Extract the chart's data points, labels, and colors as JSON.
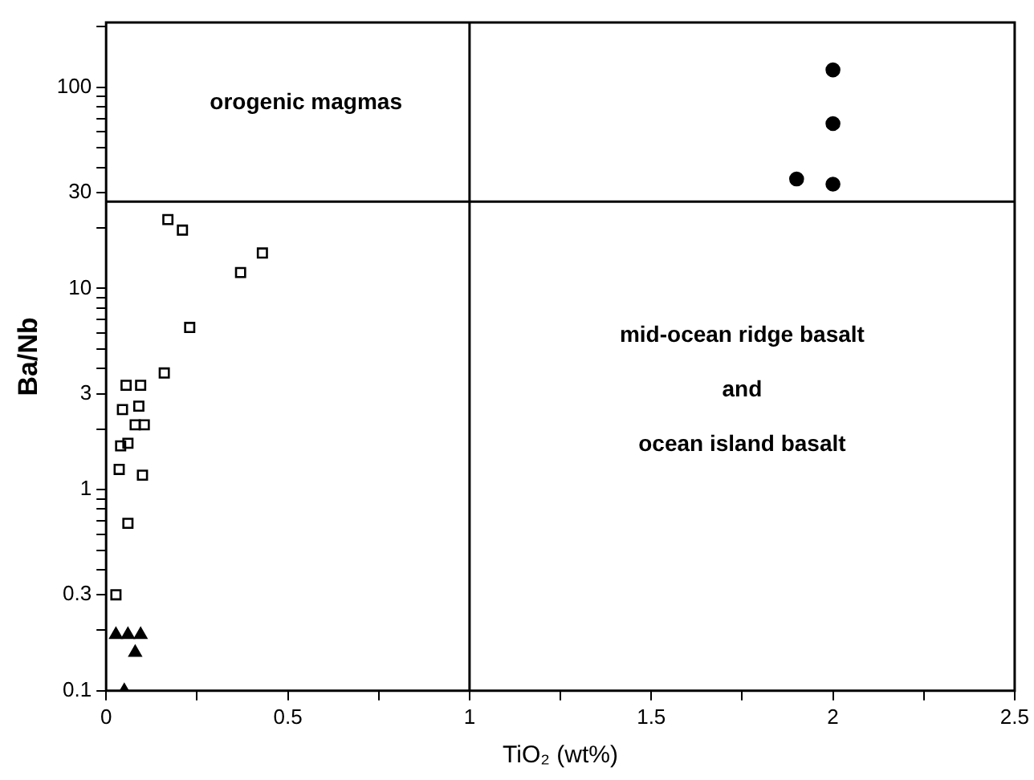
{
  "chart_data": {
    "type": "scatter",
    "xlabel": "TiO₂ (wt%)",
    "ylabel": "Ba/Nb",
    "log": "y",
    "grid": false,
    "legend": false,
    "xlim": [
      0,
      2.5
    ],
    "ylim": [
      0.1,
      210
    ],
    "xticks": [
      0,
      {
        "value": 0.25,
        "label": null
      },
      0.5,
      {
        "value": 0.75,
        "label": null
      },
      1,
      {
        "value": 1.25,
        "label": null
      },
      1.5,
      {
        "value": 1.75,
        "label": null
      },
      2,
      {
        "value": 2.25,
        "label": null
      },
      2.5
    ],
    "yticks": [
      0.1,
      {
        "value": 0.2,
        "label": null
      },
      0.3,
      {
        "value": 0.4,
        "label": null
      },
      {
        "value": 0.5,
        "label": null
      },
      {
        "value": 0.6,
        "label": null
      },
      {
        "value": 0.7,
        "label": null
      },
      {
        "value": 0.8,
        "label": null
      },
      {
        "value": 0.9,
        "label": null
      },
      1,
      {
        "value": 2,
        "label": null
      },
      3,
      {
        "value": 4,
        "label": null
      },
      {
        "value": 5,
        "label": null
      },
      {
        "value": 6,
        "label": null
      },
      {
        "value": 7,
        "label": null
      },
      {
        "value": 8,
        "label": null
      },
      {
        "value": 9,
        "label": null
      },
      10,
      {
        "value": 20,
        "label": null
      },
      30,
      {
        "value": 40,
        "label": null
      },
      {
        "value": 50,
        "label": null
      },
      {
        "value": 60,
        "label": null
      },
      {
        "value": 70,
        "label": null
      },
      {
        "value": 80,
        "label": null
      },
      {
        "value": 90,
        "label": null
      },
      100,
      {
        "value": 200,
        "label": null
      }
    ],
    "series": [
      {
        "color": "#000000",
        "marker": "square",
        "x": [
          0.17,
          0.21,
          0.43,
          0.37,
          0.23,
          0.16,
          0.055,
          0.095,
          0.045,
          0.09,
          0.08,
          0.105,
          0.06,
          0.04,
          0.036,
          0.1,
          0.06,
          0.027
        ],
        "values": [
          22,
          19.5,
          15,
          12,
          6.4,
          3.8,
          3.3,
          3.3,
          2.5,
          2.6,
          2.1,
          2.1,
          1.7,
          1.65,
          1.26,
          1.18,
          0.68,
          0.3
        ]
      },
      {
        "color": "#000000",
        "marker": "triangle",
        "x": [
          0.027,
          0.06,
          0.095,
          0.08,
          0.05
        ],
        "values": [
          0.19,
          0.19,
          0.19,
          0.155,
          0.1
        ]
      },
      {
        "color": "#000000",
        "marker": "circle",
        "x": [
          2.0,
          2.0,
          2.0,
          1.9
        ],
        "values": [
          122,
          66,
          33,
          35
        ]
      }
    ],
    "ref_lines": [
      {
        "axis": "x",
        "value": 1
      },
      {
        "axis": "y",
        "value": 27
      }
    ],
    "annotations": [
      "orogenic magmas",
      "mid-ocean ridge basalt\nand\nocean island basalt"
    ]
  }
}
